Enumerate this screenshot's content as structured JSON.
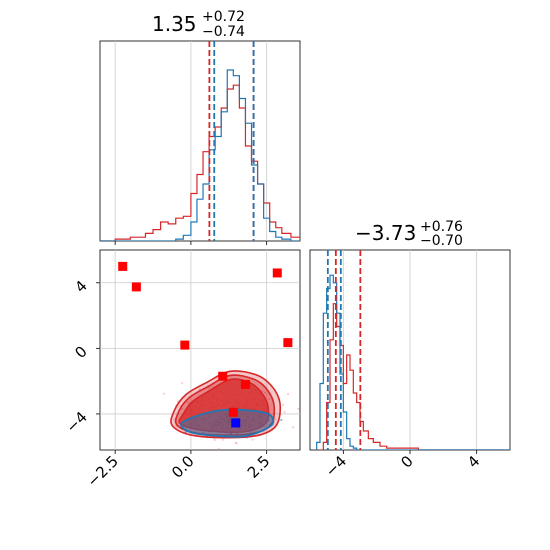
{
  "chart_data": {
    "type": "corner",
    "parameters": [
      {
        "title_value": "1.35",
        "title_plus": "+0.72",
        "title_minus": "−0.74",
        "range": [
          -3.0,
          3.6
        ],
        "ticks": [
          -2.5,
          0.0,
          2.5
        ],
        "tick_labels": [
          "−2.5",
          "0.0",
          "2.5"
        ]
      },
      {
        "title_value": "−3.73",
        "title_plus": "+0.76",
        "title_minus": "−0.70",
        "range": [
          -6.0,
          6.0
        ],
        "ticks": [
          -4,
          0,
          4
        ],
        "tick_labels": [
          "−4",
          "0",
          "4"
        ]
      }
    ],
    "scatter_y_ticks": [
      4,
      0,
      -4
    ],
    "scatter_y_tick_labels": [
      "4",
      "0",
      "−4"
    ],
    "scatter_ylim": [
      -6.2,
      6.0
    ],
    "colors": {
      "blue": "#1f77b4",
      "red": "#d62728",
      "grid": "#cccccc",
      "marker_red": "#ff0000",
      "marker_blue": "#0000ff"
    },
    "hist_param1": {
      "bin_edges": [
        -3.0,
        -2.5,
        -2.0,
        -1.5,
        -1.25,
        -1.0,
        -0.75,
        -0.5,
        -0.25,
        0.0,
        0.2,
        0.4,
        0.6,
        0.8,
        1.0,
        1.2,
        1.4,
        1.6,
        1.8,
        2.0,
        2.2,
        2.4,
        2.6,
        2.8,
        3.0,
        3.3,
        3.6
      ],
      "blue": [
        0,
        0,
        0,
        0,
        0,
        0,
        0,
        0.01,
        0.03,
        0.1,
        0.22,
        0.3,
        0.48,
        0.55,
        0.68,
        0.9,
        0.87,
        0.75,
        0.62,
        0.4,
        0.3,
        0.12,
        0.05,
        0.02,
        0.01,
        0
      ],
      "red": [
        0,
        0.01,
        0.02,
        0.04,
        0.06,
        0.1,
        0.09,
        0.12,
        0.13,
        0.25,
        0.35,
        0.47,
        0.55,
        0.6,
        0.7,
        0.8,
        0.82,
        0.7,
        0.5,
        0.42,
        0.3,
        0.2,
        0.1,
        0.07,
        0.04,
        0.02
      ],
      "blue_quantiles": [
        0.77,
        2.07
      ],
      "red_quantiles": [
        0.61,
        2.07
      ]
    },
    "hist_param2": {
      "bin_edges": [
        -5.6,
        -5.4,
        -5.2,
        -5.0,
        -4.8,
        -4.6,
        -4.4,
        -4.2,
        -4.0,
        -3.8,
        -3.6,
        -3.4,
        -3.2,
        -3.0,
        -2.8,
        -2.5,
        -2.2,
        -1.8,
        -1.4,
        -1.0,
        -0.5,
        0.0,
        0.5,
        1.0,
        2.0,
        4.0,
        6.0
      ],
      "blue": [
        0.04,
        0.35,
        0.72,
        0.85,
        0.92,
        0.88,
        0.72,
        0.4,
        0.2,
        0.06,
        0.02,
        0.01,
        0,
        0,
        0,
        0,
        0,
        0,
        0,
        0,
        0,
        0,
        0,
        0,
        0,
        0
      ],
      "red": [
        0,
        0,
        0.04,
        0.25,
        0.58,
        0.77,
        0.65,
        0.55,
        0.35,
        0.5,
        0.42,
        0.3,
        0.25,
        0.15,
        0.1,
        0.06,
        0.04,
        0.02,
        0.01,
        0.01,
        0.01,
        0.01,
        0,
        0,
        0,
        0
      ],
      "blue_quantiles": [
        -4.93,
        -4.15
      ],
      "red_quantiles": [
        -4.45,
        -2.98
      ]
    },
    "red_contours": [
      {
        "level": 0.4,
        "opacity": 1.0,
        "points": [
          [
            -0.35,
            -4.6
          ],
          [
            -0.25,
            -4.0
          ],
          [
            0.05,
            -3.25
          ],
          [
            0.6,
            -2.6
          ],
          [
            1.3,
            -1.9
          ],
          [
            1.95,
            -2.1
          ],
          [
            2.35,
            -2.75
          ],
          [
            2.55,
            -3.6
          ],
          [
            2.45,
            -4.6
          ],
          [
            1.7,
            -5.1
          ],
          [
            0.4,
            -5.0
          ]
        ]
      },
      {
        "level": 0.3,
        "opacity": 0.55,
        "points": [
          [
            -0.45,
            -4.7
          ],
          [
            -0.4,
            -3.85
          ],
          [
            -0.05,
            -3.0
          ],
          [
            0.55,
            -2.35
          ],
          [
            1.3,
            -1.65
          ],
          [
            2.1,
            -1.9
          ],
          [
            2.55,
            -2.6
          ],
          [
            2.75,
            -3.6
          ],
          [
            2.6,
            -4.75
          ],
          [
            1.8,
            -5.25
          ],
          [
            0.3,
            -5.2
          ]
        ]
      },
      {
        "level": 0.2,
        "opacity": 0.35,
        "points": [
          [
            -0.6,
            -4.75
          ],
          [
            -0.55,
            -3.8
          ],
          [
            -0.15,
            -2.8
          ],
          [
            0.5,
            -2.1
          ],
          [
            1.3,
            -1.4
          ],
          [
            2.2,
            -1.65
          ],
          [
            2.75,
            -2.5
          ],
          [
            2.95,
            -3.6
          ],
          [
            2.75,
            -4.85
          ],
          [
            1.9,
            -5.4
          ],
          [
            0.2,
            -5.35
          ]
        ]
      }
    ],
    "blue_contour": {
      "points": [
        [
          -0.3,
          -4.55
        ],
        [
          0.4,
          -4.0
        ],
        [
          1.1,
          -3.75
        ],
        [
          2.0,
          -3.8
        ],
        [
          2.6,
          -4.05
        ],
        [
          2.65,
          -4.7
        ],
        [
          1.8,
          -5.35
        ],
        [
          0.6,
          -5.3
        ],
        [
          -0.1,
          -5.05
        ]
      ]
    },
    "red_markers": [
      [
        -2.25,
        5.0
      ],
      [
        -1.8,
        3.75
      ],
      [
        -0.2,
        0.2
      ],
      [
        1.05,
        -1.7
      ],
      [
        1.8,
        -2.2
      ],
      [
        1.4,
        -3.9
      ],
      [
        2.85,
        4.6
      ],
      [
        3.2,
        0.35
      ]
    ],
    "blue_marker": [
      1.48,
      -4.55
    ]
  }
}
